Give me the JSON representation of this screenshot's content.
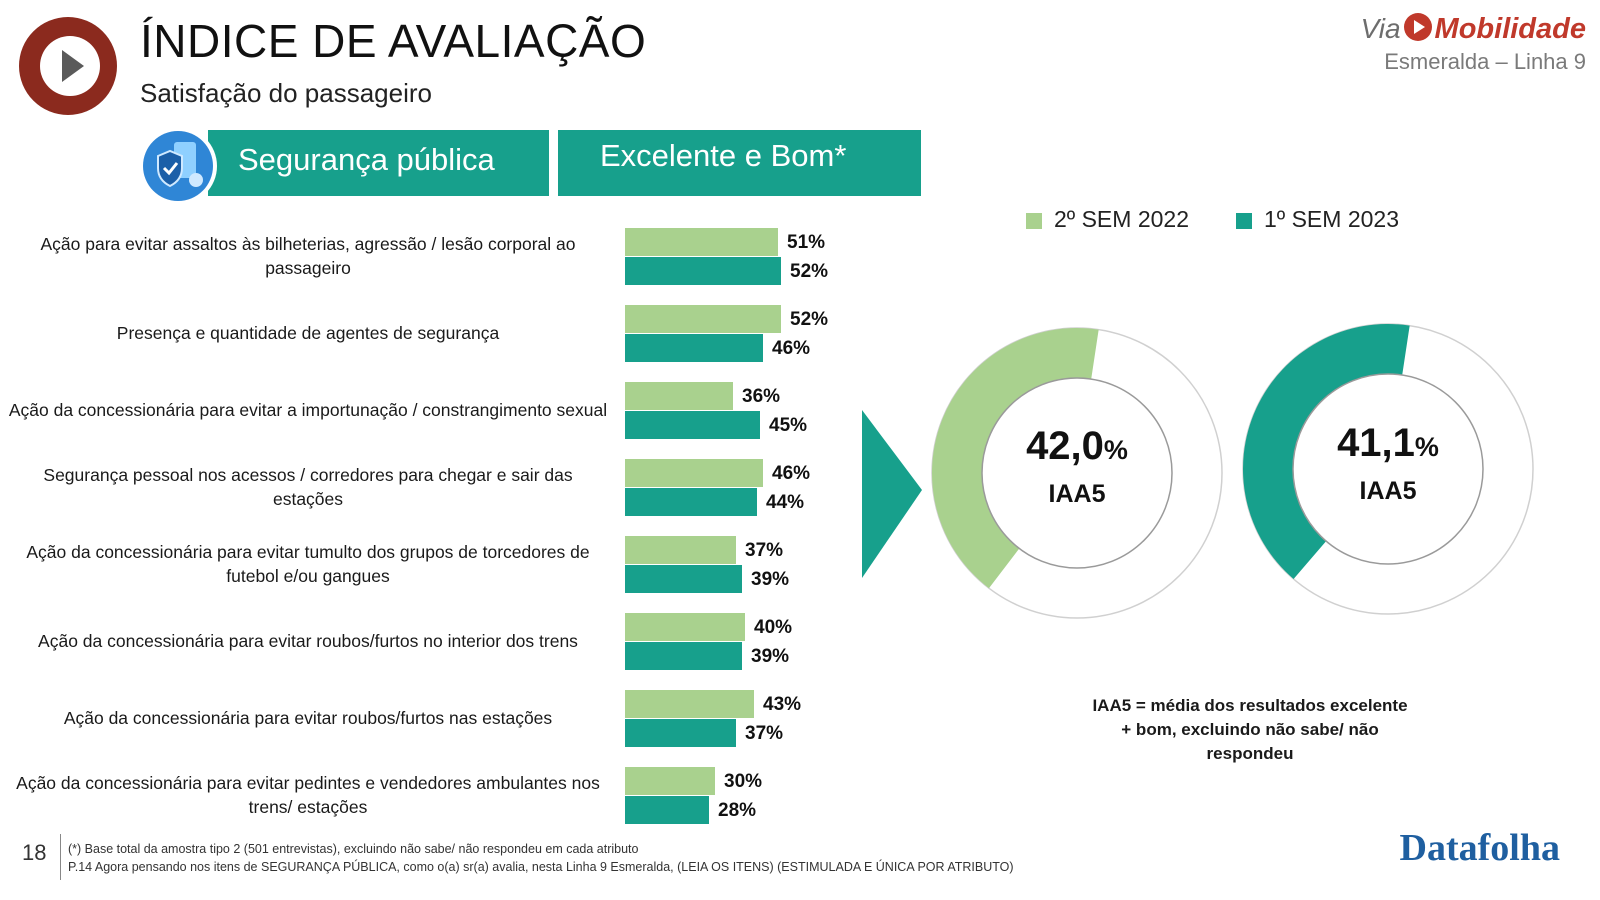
{
  "header": {
    "title": "ÍNDICE DE AVALIAÇÃO",
    "subtitle": "Satisfação do passageiro",
    "brand_prefix": "Via",
    "brand_name": "Mobilidade",
    "line_name": "Esmeralda – Linha 9",
    "logo_icon": "play-icon",
    "colors": {
      "logo": "#8b2a1e",
      "accent": "#17a08c",
      "light": "#a9d18e"
    }
  },
  "section": {
    "theme_label": "Segurança pública",
    "theme_icon": "security-shield-icon",
    "metric_label": "Excelente e Bom*"
  },
  "chart_data": [
    {
      "type": "bar",
      "orientation": "horizontal",
      "categories": [
        "Ação para evitar assaltos às bilheterias, agressão / lesão corporal ao passageiro",
        "Presença e quantidade de agentes de segurança",
        "Ação da concessionária para evitar a importunação / constrangimento sexual",
        "Segurança pessoal nos acessos / corredores para chegar e sair das estações",
        "Ação da concessionária para evitar tumulto dos grupos de torcedores de futebol e/ou gangues",
        "Ação da concessionária para evitar roubos/furtos no interior dos trens",
        "Ação da concessionária para evitar roubos/furtos nas estações",
        "Ação da concessionária para evitar pedintes e vendedores ambulantes nos trens/ estações"
      ],
      "series": [
        {
          "name": "2º SEM 2022",
          "color": "#a9d18e",
          "values": [
            51,
            52,
            36,
            46,
            37,
            40,
            43,
            30
          ]
        },
        {
          "name": "1º SEM 2023",
          "color": "#17a08c",
          "values": [
            52,
            46,
            45,
            44,
            39,
            39,
            37,
            28
          ]
        }
      ],
      "value_suffix": "%"
    },
    {
      "type": "pie",
      "donut": true,
      "series": [
        {
          "name": "2º SEM 2022",
          "value": 42.0,
          "display": "42,0",
          "unit": "%",
          "label": "IAA5",
          "color": "#a9d18e"
        },
        {
          "name": "1º SEM 2023",
          "value": 41.1,
          "display": "41,1",
          "unit": "%",
          "label": "IAA5",
          "color": "#17a08c"
        }
      ]
    }
  ],
  "note": "IAA5 = média dos resultados excelente + bom, excluindo não sabe/ não respondeu",
  "footer": {
    "page_number": "18",
    "line1": "(*) Base total da amostra tipo 2 (501 entrevistas), excluindo não sabe/ não respondeu em cada atributo",
    "line2": "P.14 Agora pensando nos itens de SEGURANÇA PÚBLICA, como o(a) sr(a) avalia, nesta Linha 9 Esmeralda, (LEIA OS ITENS) (ESTIMULADA E ÚNICA POR ATRIBUTO)",
    "source": "Datafolha"
  }
}
